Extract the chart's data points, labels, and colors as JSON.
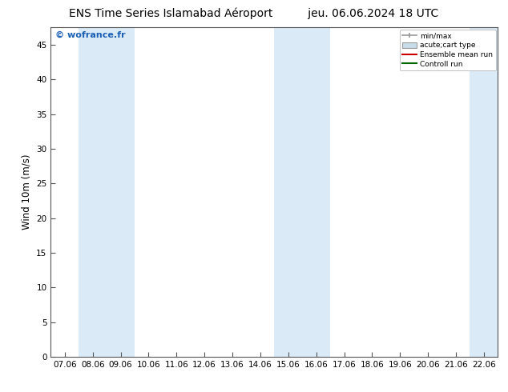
{
  "title": "ENS Time Series Islamabad Aéroport          jeu. 06.06.2024 18 UTC",
  "ylabel": "Wind 10m (m/s)",
  "watermark": "© wofrance.fr",
  "xtick_labels": [
    "07.06",
    "08.06",
    "09.06",
    "10.06",
    "11.06",
    "12.06",
    "13.06",
    "14.06",
    "15.06",
    "16.06",
    "17.06",
    "18.06",
    "19.06",
    "20.06",
    "21.06",
    "22.06"
  ],
  "yticks": [
    0,
    5,
    10,
    15,
    20,
    25,
    30,
    35,
    40,
    45
  ],
  "ymax": 47.5,
  "xmin": -0.5,
  "xmax": 15.5,
  "shade_color": "#daeaf7",
  "shade_ranges": [
    [
      0.5,
      2.5
    ],
    [
      7.5,
      9.5
    ],
    [
      14.5,
      15.5
    ]
  ],
  "legend_entries": [
    {
      "label": "min/max",
      "color": "#999999",
      "type": "errorbar"
    },
    {
      "label": "acute;cart type",
      "color": "#c8dcea",
      "type": "box"
    },
    {
      "label": "Ensemble mean run",
      "color": "#cc0000",
      "type": "line"
    },
    {
      "label": "Controll run",
      "color": "#006600",
      "type": "line"
    }
  ],
  "bg_color": "#ffffff",
  "plot_bg_color": "#ffffff",
  "spine_color": "#555555",
  "title_fontsize": 10,
  "tick_fontsize": 7.5,
  "ylabel_fontsize": 8.5,
  "watermark_color": "#1a5fb4",
  "watermark_fontsize": 8
}
